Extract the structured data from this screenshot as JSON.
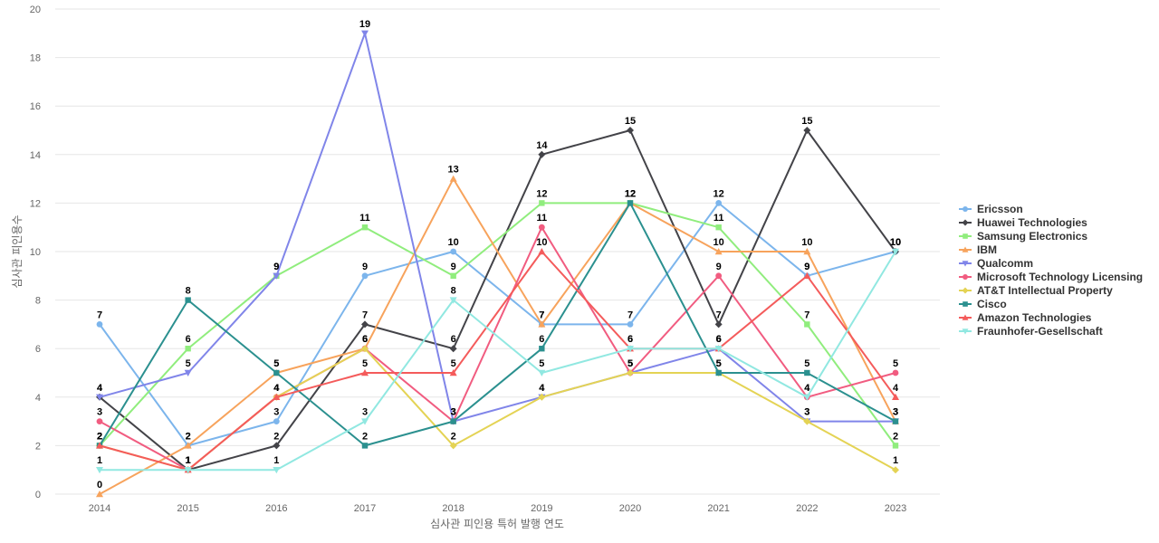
{
  "chart_data": {
    "type": "line",
    "xlabel": "심사관 피인용 특허 발행 연도",
    "ylabel": "심사관 피인용수",
    "ylim": [
      0,
      20
    ],
    "yticks": [
      0,
      2,
      4,
      6,
      8,
      10,
      12,
      14,
      16,
      18,
      20
    ],
    "categories": [
      "2014",
      "2015",
      "2016",
      "2017",
      "2018",
      "2019",
      "2020",
      "2021",
      "2022",
      "2023"
    ],
    "grid": true,
    "legend_position": "right",
    "series": [
      {
        "name": "Ericsson",
        "color": "#7cb5ec",
        "marker": "circle",
        "values": [
          7,
          2,
          3,
          9,
          10,
          7,
          7,
          12,
          9,
          10
        ]
      },
      {
        "name": "Huawei Technologies",
        "color": "#434348",
        "marker": "diamond",
        "values": [
          4,
          1,
          2,
          7,
          6,
          14,
          15,
          7,
          15,
          10
        ]
      },
      {
        "name": "Samsung Electronics",
        "color": "#90ed7d",
        "marker": "square",
        "values": [
          2,
          6,
          9,
          11,
          9,
          12,
          12,
          11,
          7,
          2
        ]
      },
      {
        "name": "IBM",
        "color": "#f7a35c",
        "marker": "triangle",
        "values": [
          0,
          2,
          5,
          6,
          13,
          7,
          12,
          10,
          10,
          3
        ]
      },
      {
        "name": "Qualcomm",
        "color": "#8085e9",
        "marker": "triangle-down",
        "values": [
          4,
          5,
          9,
          19,
          3,
          4,
          5,
          6,
          3,
          3
        ]
      },
      {
        "name": "Microsoft Technology Licensing",
        "color": "#f15c80",
        "marker": "circle",
        "values": [
          3,
          1,
          4,
          6,
          3,
          11,
          5,
          9,
          4,
          5
        ]
      },
      {
        "name": "AT&T Intellectual Property",
        "color": "#e4d354",
        "marker": "diamond",
        "values": [
          2,
          1,
          4,
          6,
          2,
          4,
          5,
          5,
          3,
          1
        ]
      },
      {
        "name": "Cisco",
        "color": "#2b908f",
        "marker": "square",
        "values": [
          2,
          8,
          5,
          2,
          3,
          6,
          12,
          5,
          5,
          3
        ]
      },
      {
        "name": "Amazon Technologies",
        "color": "#f45b5b",
        "marker": "triangle",
        "values": [
          2,
          1,
          4,
          5,
          5,
          10,
          6,
          6,
          9,
          4
        ]
      },
      {
        "name": "Fraunhofer-Gesellschaft",
        "color": "#91e8e1",
        "marker": "triangle-down",
        "values": [
          1,
          1,
          1,
          3,
          8,
          5,
          6,
          6,
          4,
          10
        ]
      }
    ]
  }
}
